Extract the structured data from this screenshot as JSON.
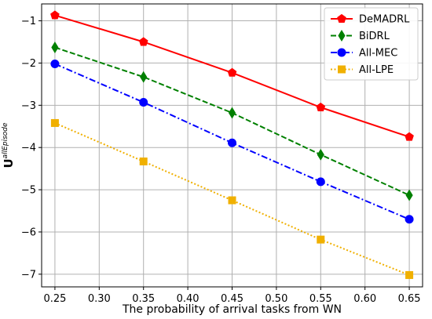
{
  "chart_data": {
    "type": "line",
    "title": "",
    "xlabel": "The probability of arrival tasks from WN",
    "ylabel_main": "U",
    "ylabel_sup": "allEpisode",
    "x": [
      0.25,
      0.35,
      0.45,
      0.55,
      0.65
    ],
    "xlim": [
      0.235,
      0.665
    ],
    "ylim": [
      -7.3,
      -0.6
    ],
    "xticks": [
      0.25,
      0.3,
      0.35,
      0.4,
      0.45,
      0.5,
      0.55,
      0.6,
      0.65
    ],
    "xtick_labels": [
      "0.25",
      "0.30",
      "0.35",
      "0.40",
      "0.45",
      "0.50",
      "0.55",
      "0.60",
      "0.65"
    ],
    "yticks": [
      -7,
      -6,
      -5,
      -4,
      -3,
      -2,
      -1
    ],
    "ytick_labels": [
      "−7",
      "−6",
      "−5",
      "−4",
      "−3",
      "−2",
      "−1"
    ],
    "grid": true,
    "legend_position": "top-right",
    "series": [
      {
        "name": "DeMADRL",
        "values": [
          -0.87,
          -1.5,
          -2.23,
          -3.05,
          -3.75
        ],
        "color": "#ff0000",
        "dash": "solid",
        "marker": "pentagon"
      },
      {
        "name": "BiDRL",
        "values": [
          -1.63,
          -2.33,
          -3.18,
          -4.17,
          -5.13
        ],
        "color": "#008000",
        "dash": "dashed",
        "marker": "thin-diamond"
      },
      {
        "name": "All-MEC",
        "values": [
          -2.02,
          -2.93,
          -3.89,
          -4.81,
          -5.7
        ],
        "color": "#0000ff",
        "dash": "dashdot",
        "marker": "circle"
      },
      {
        "name": "All-LPE",
        "values": [
          -3.42,
          -4.33,
          -5.25,
          -6.18,
          -7.02
        ],
        "color": "#f0b000",
        "dash": "dotted",
        "marker": "square"
      }
    ]
  }
}
